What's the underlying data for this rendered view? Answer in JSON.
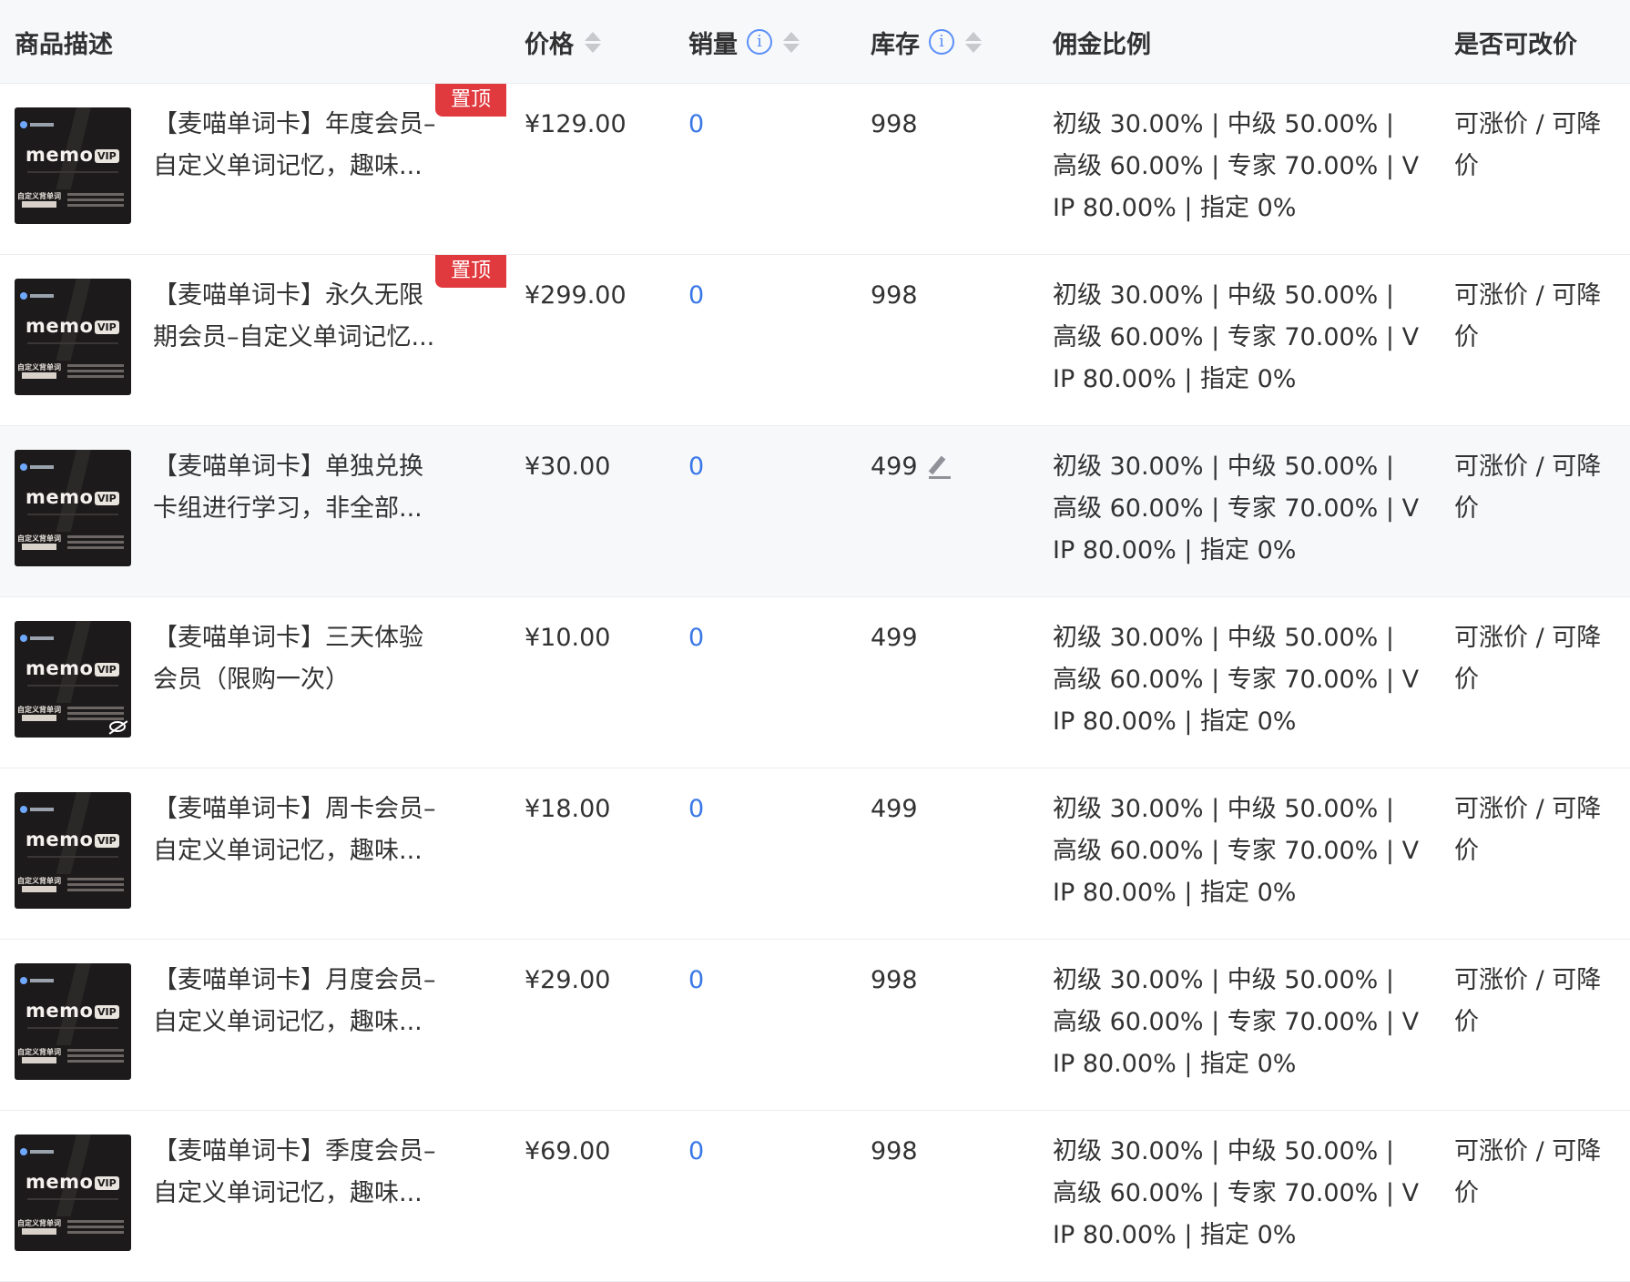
{
  "columns": {
    "desc": "商品描述",
    "price": "价格",
    "sales": "销量",
    "stock": "库存",
    "commission": "佣金比例",
    "adjustable": "是否可改价"
  },
  "rows": [
    {
      "line1": "【麦喵单词卡】年度会员–",
      "line2": "自定义单词记忆，趣味...",
      "pin": "置顶",
      "price": "¥129.00",
      "sales": "0",
      "stock": "998",
      "comm1": "初级 30.00% | 中级 50.00% |",
      "comm2": "高级 60.00% | 专家 70.00% | V",
      "comm3": "IP 80.00% | 指定 0%",
      "adj1": "可涨价 / 可降",
      "adj2": "价"
    },
    {
      "line1": "【麦喵单词卡】永久无限",
      "line2": "期会员–自定义单词记忆...",
      "pin": "置顶",
      "price": "¥299.00",
      "sales": "0",
      "stock": "998",
      "comm1": "初级 30.00% | 中级 50.00% |",
      "comm2": "高级 60.00% | 专家 70.00% | V",
      "comm3": "IP 80.00% | 指定 0%",
      "adj1": "可涨价 / 可降",
      "adj2": "价"
    },
    {
      "line1": "【麦喵单词卡】单独兑换",
      "line2": "卡组进行学习，非全部...",
      "price": "¥30.00",
      "sales": "0",
      "stock": "499",
      "comm1": "初级 30.00% | 中级 50.00% |",
      "comm2": "高级 60.00% | 专家 70.00% | V",
      "comm3": "IP 80.00% | 指定 0%",
      "adj1": "可涨价 / 可降",
      "adj2": "价"
    },
    {
      "line1": "【麦喵单词卡】三天体验",
      "line2": "会员（限购一次）",
      "price": "¥10.00",
      "sales": "0",
      "stock": "499",
      "comm1": "初级 30.00% | 中级 50.00% |",
      "comm2": "高级 60.00% | 专家 70.00% | V",
      "comm3": "IP 80.00% | 指定 0%",
      "adj1": "可涨价 / 可降",
      "adj2": "价"
    },
    {
      "line1": "【麦喵单词卡】周卡会员–",
      "line2": "自定义单词记忆，趣味...",
      "price": "¥18.00",
      "sales": "0",
      "stock": "499",
      "comm1": "初级 30.00% | 中级 50.00% |",
      "comm2": "高级 60.00% | 专家 70.00% | V",
      "comm3": "IP 80.00% | 指定 0%",
      "adj1": "可涨价 / 可降",
      "adj2": "价"
    },
    {
      "line1": "【麦喵单词卡】月度会员–",
      "line2": "自定义单词记忆，趣味...",
      "price": "¥29.00",
      "sales": "0",
      "stock": "998",
      "comm1": "初级 30.00% | 中级 50.00% |",
      "comm2": "高级 60.00% | 专家 70.00% | V",
      "comm3": "IP 80.00% | 指定 0%",
      "adj1": "可涨价 / 可降",
      "adj2": "价"
    },
    {
      "line1": "【麦喵单词卡】季度会员–",
      "line2": "自定义单词记忆，趣味...",
      "price": "¥69.00",
      "sales": "0",
      "stock": "998",
      "comm1": "初级 30.00% | 中级 50.00% |",
      "comm2": "高级 60.00% | 专家 70.00% | V",
      "comm3": "IP 80.00% | 指定 0%",
      "adj1": "可涨价 / 可降",
      "adj2": "价"
    }
  ],
  "thumbnail": {
    "brand": "memo",
    "badge": "VIP",
    "caption": "自定义背单词"
  },
  "icons": {
    "sort": "sort-caret-icon",
    "info": "info-circle-icon",
    "edit": "pencil-edit-icon",
    "hidden": "eye-off-icon"
  },
  "colors": {
    "header_bg": "#f7f8fa",
    "pin_bg": "#e03a3e",
    "link": "#3b78e7",
    "info": "#5b8ff9"
  }
}
